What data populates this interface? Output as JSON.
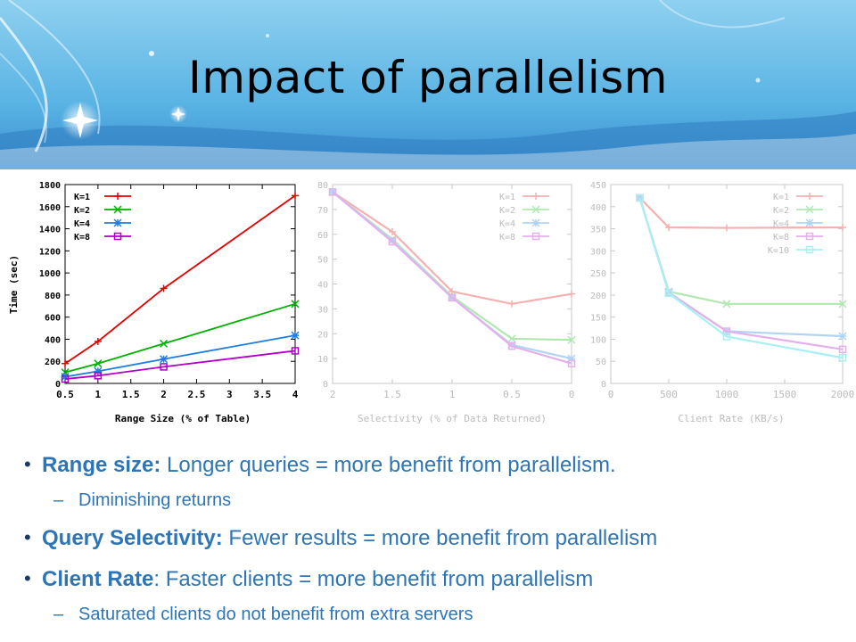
{
  "slide": {
    "title": "Impact of parallelism"
  },
  "bullets": [
    {
      "label": "Range size:",
      "text": " Longer queries = more benefit from parallelism."
    },
    {
      "sub": "Diminishing returns"
    },
    {
      "label": "Query Selectivity:",
      "text": " Fewer results = more benefit from parallelism"
    },
    {
      "label": "Client Rate",
      "text": ": Faster clients = more benefit from parallelism"
    },
    {
      "sub": "Saturated clients do not benefit from extra servers"
    }
  ],
  "chart_data": [
    {
      "type": "line",
      "xlabel": "Range Size (% of Table)",
      "ylabel": "Time (sec)",
      "xlim": [
        0.5,
        4
      ],
      "ylim": [
        0,
        1800
      ],
      "x_ticks": [
        "0.5",
        "1",
        "1.5",
        "2",
        "2.5",
        "3",
        "3.5",
        "4"
      ],
      "y_ticks": [
        "0",
        "200",
        "400",
        "600",
        "800",
        "1000",
        "1200",
        "1400",
        "1600",
        "1800"
      ],
      "legend_position": "top-left",
      "x": [
        0.5,
        1,
        2,
        4
      ],
      "series": [
        {
          "name": "K=1",
          "color": "#e60000",
          "marker": "plus",
          "values": [
            180,
            380,
            860,
            1700
          ]
        },
        {
          "name": "K=2",
          "color": "#00b000",
          "marker": "x",
          "values": [
            100,
            180,
            360,
            720
          ]
        },
        {
          "name": "K=4",
          "color": "#1e7de0",
          "marker": "star",
          "values": [
            60,
            110,
            220,
            435
          ]
        },
        {
          "name": "K=8",
          "color": "#b000c8",
          "marker": "square",
          "values": [
            40,
            70,
            150,
            295
          ]
        }
      ]
    },
    {
      "type": "line",
      "xlabel": "Selectivity (% of Data Returned)",
      "ylabel": "",
      "xlim": [
        2,
        0
      ],
      "ylim": [
        0,
        80
      ],
      "x_ticks": [
        "2",
        "1.5",
        "1",
        "0.5",
        "0"
      ],
      "y_ticks": [
        "0",
        "10",
        "20",
        "30",
        "40",
        "50",
        "60",
        "70",
        "80"
      ],
      "legend_position": "top-right",
      "x": [
        2,
        1.5,
        1,
        0.5,
        0
      ],
      "series": [
        {
          "name": "K=1",
          "color": "#f6b0b0",
          "marker": "plus",
          "values": [
            77,
            61,
            37,
            32,
            36
          ]
        },
        {
          "name": "K=2",
          "color": "#b0e8b0",
          "marker": "x",
          "values": [
            77,
            58,
            35,
            18,
            17.5
          ]
        },
        {
          "name": "K=4",
          "color": "#b0d4f4",
          "marker": "star",
          "values": [
            77,
            57.5,
            34.5,
            15.5,
            10
          ]
        },
        {
          "name": "K=8",
          "color": "#e4b0ec",
          "marker": "square",
          "values": [
            77,
            57,
            34.5,
            15,
            8
          ]
        }
      ]
    },
    {
      "type": "line",
      "xlabel": "Client Rate (KB/s)",
      "ylabel": "",
      "xlim": [
        0,
        2000
      ],
      "ylim": [
        0,
        450
      ],
      "x_ticks": [
        "0",
        "500",
        "1000",
        "1500",
        "2000"
      ],
      "y_ticks": [
        "0",
        "50",
        "100",
        "150",
        "200",
        "250",
        "300",
        "350",
        "400",
        "450"
      ],
      "legend_position": "top-right",
      "x": [
        250,
        500,
        1000,
        2000
      ],
      "series": [
        {
          "name": "K=1",
          "color": "#f6b0b0",
          "marker": "plus",
          "values": [
            420,
            353,
            352,
            353
          ]
        },
        {
          "name": "K=2",
          "color": "#b0e8b0",
          "marker": "x",
          "values": [
            420,
            208,
            180,
            180
          ]
        },
        {
          "name": "K=4",
          "color": "#b0d4f4",
          "marker": "star",
          "values": [
            420,
            206,
            118,
            107
          ]
        },
        {
          "name": "K=8",
          "color": "#e4b0ec",
          "marker": "square",
          "values": [
            420,
            205,
            118,
            77
          ]
        },
        {
          "name": "K=10",
          "color": "#a8f0f4",
          "marker": "square",
          "values": [
            420,
            204,
            106,
            58
          ]
        }
      ]
    }
  ]
}
